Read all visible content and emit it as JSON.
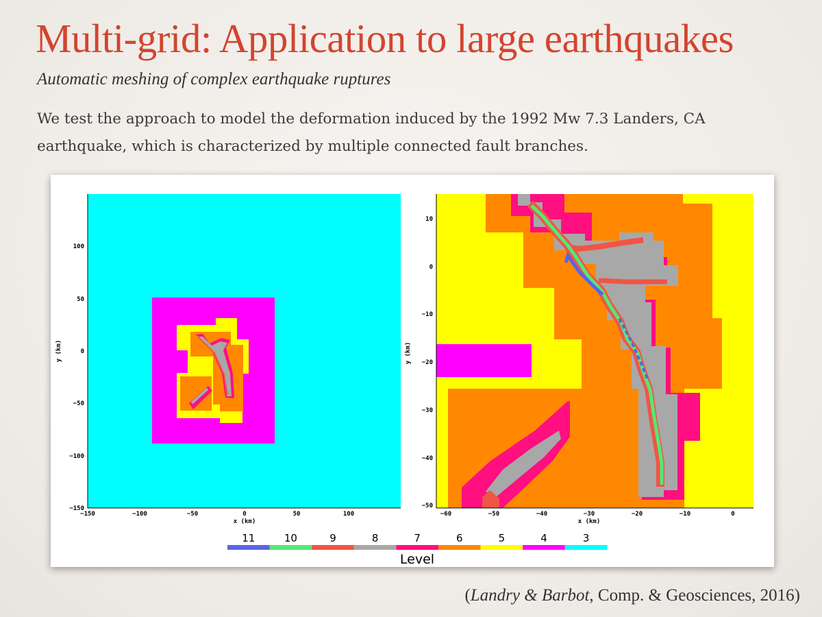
{
  "slide": {
    "title": "Multi-grid: Application to large earthquakes",
    "subtitle": "Automatic meshing of complex earthquake ruptures",
    "body": "We test the approach to model the deformation induced by the 1992 Mw 7.3 Landers, CA earthquake, which is characterized by multiple connected fault branches.",
    "citation": {
      "authors": "Landry & Barbot",
      "rest": ", Comp. & Geosciences, 2016)",
      "open": "("
    }
  },
  "left_plot": {
    "xlabel": "x (km)",
    "ylabel": "y (km)",
    "xticks": [
      "−150",
      "−100",
      "−50",
      "0",
      "50",
      "100"
    ],
    "yticks": [
      "100",
      "50",
      "0",
      "−50",
      "−100",
      "−150"
    ]
  },
  "right_plot": {
    "xlabel": "x (km)",
    "ylabel": "y (km)",
    "xticks": [
      "−60",
      "−50",
      "−40",
      "−30",
      "−20",
      "−10",
      "0"
    ],
    "yticks": [
      "10",
      "0",
      "−10",
      "−20",
      "−30",
      "−40",
      "−50"
    ]
  },
  "legend": {
    "title": "Level",
    "levels": [
      {
        "label": "11",
        "color": "#5b63e6"
      },
      {
        "label": "10",
        "color": "#55e875"
      },
      {
        "label": "9",
        "color": "#f05545"
      },
      {
        "label": "8",
        "color": "#a8a8a8"
      },
      {
        "label": "7",
        "color": "#ff0f7f"
      },
      {
        "label": "6",
        "color": "#ff8800"
      },
      {
        "label": "5",
        "color": "#ffff00"
      },
      {
        "label": "4",
        "color": "#ff00ff"
      },
      {
        "label": "3",
        "color": "#00ffff"
      }
    ]
  }
}
